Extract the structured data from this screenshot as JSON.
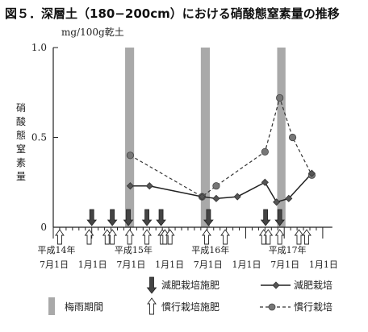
{
  "chart_data": {
    "type": "line",
    "title": "図５．深層土（180−200cm）における硝酸態窒素量の推移",
    "unit_label": "mg/100g乾土",
    "ylabel": "硝酸態窒素量",
    "ylim": [
      0,
      1.0
    ],
    "yticks": [
      "0",
      "0.5",
      "1.0"
    ],
    "x_axis": {
      "tick_labels": [
        {
          "text": "7月1日",
          "month": 0
        },
        {
          "text": "1月1日",
          "month": 6
        },
        {
          "text": "7月1日",
          "month": 12
        },
        {
          "text": "1月1日",
          "month": 18
        },
        {
          "text": "7月1日",
          "month": 24
        },
        {
          "text": "1月1日",
          "month": 30
        },
        {
          "text": "7月1日",
          "month": 36
        },
        {
          "text": "1月1日",
          "month": 42
        }
      ],
      "year_labels": [
        {
          "text": "平成14年",
          "month": 0
        },
        {
          "text": "平成15年",
          "month": 12
        },
        {
          "text": "平成16年",
          "month": 24
        },
        {
          "text": "平成17年",
          "month": 36
        }
      ]
    },
    "x_unit": "months since 平成14年7月1日",
    "rainy_season_bands": [
      [
        11.2,
        12.6
      ],
      [
        23.0,
        24.4
      ],
      [
        34.9,
        36.2
      ]
    ],
    "series": [
      {
        "name": "減肥栽培",
        "marker": "diamond",
        "line": "solid",
        "points": [
          {
            "x": 12.0,
            "y": 0.23
          },
          {
            "x": 15.0,
            "y": 0.23
          },
          {
            "x": 23.2,
            "y": 0.17
          },
          {
            "x": 25.4,
            "y": 0.16
          },
          {
            "x": 28.7,
            "y": 0.17
          },
          {
            "x": 33.0,
            "y": 0.25
          },
          {
            "x": 34.8,
            "y": 0.14
          },
          {
            "x": 36.7,
            "y": 0.16
          },
          {
            "x": 40.3,
            "y": 0.3
          }
        ]
      },
      {
        "name": "慣行栽培",
        "marker": "circle",
        "line": "dashed",
        "points": [
          {
            "x": 12.0,
            "y": 0.4
          },
          {
            "x": 23.2,
            "y": 0.17
          },
          {
            "x": 25.4,
            "y": 0.23
          },
          {
            "x": 33.0,
            "y": 0.42
          },
          {
            "x": 35.3,
            "y": 0.72
          },
          {
            "x": 37.3,
            "y": 0.5
          },
          {
            "x": 40.3,
            "y": 0.29
          }
        ]
      }
    ],
    "fertilization_events": {
      "減肥栽培施肥": [
        6.0,
        9.2,
        11.7,
        14.6,
        16.8,
        24.2,
        33.1,
        35.3
      ],
      "慣行栽培施肥": [
        1.0,
        5.6,
        8.4,
        9.2,
        11.9,
        14.6,
        17.0,
        17.4,
        18.2,
        23.9,
        26.8,
        32.8,
        33.5,
        35.3,
        38.3,
        39.5
      ]
    },
    "legend": {
      "position": "bottom",
      "items": [
        {
          "symbol": "filled-down-arrow",
          "label": "減肥栽培施肥"
        },
        {
          "symbol": "diamond-solid-line",
          "label": "減肥栽培"
        },
        {
          "symbol": "gray-band",
          "label": "梅雨期間"
        },
        {
          "symbol": "open-up-arrow",
          "label": "慣行栽培施肥"
        },
        {
          "symbol": "circle-dashed-line",
          "label": "慣行栽培"
        }
      ]
    }
  }
}
